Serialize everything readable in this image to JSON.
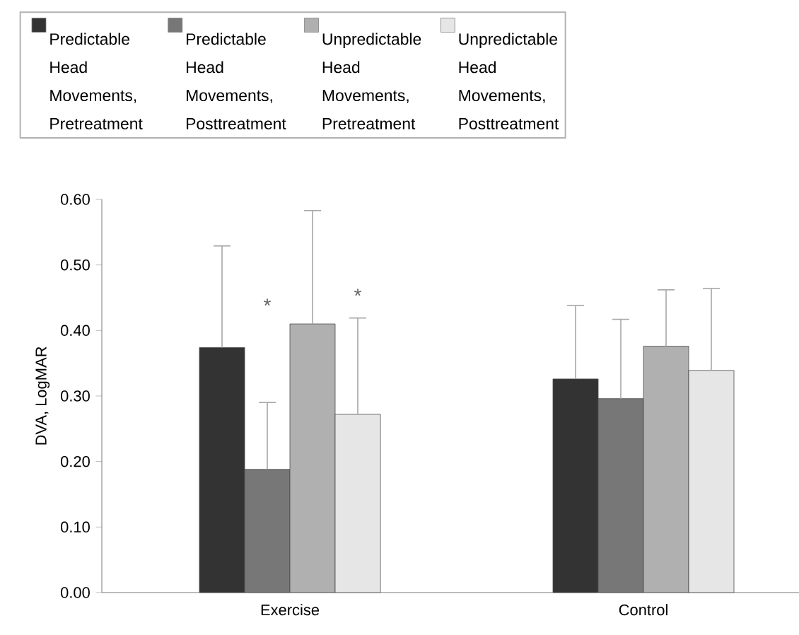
{
  "chart_data": {
    "type": "bar",
    "ylabel": "DVA, LogMAR",
    "categories": [
      "Exercise",
      "Control"
    ],
    "series": [
      {
        "name": "Predictable Head Movements, Pretreatment",
        "color": "#333333",
        "values": [
          0.374,
          0.326
        ],
        "errors": [
          [
            0.374,
            0.529
          ],
          [
            0.326,
            0.438
          ]
        ]
      },
      {
        "name": "Predictable Head Movements, Posttreatment",
        "color": "#777777",
        "values": [
          0.188,
          0.296
        ],
        "errors": [
          [
            0.188,
            0.29
          ],
          [
            0.296,
            0.417
          ]
        ]
      },
      {
        "name": "Unpredictable Head Movements, Pretreatment",
        "color": "#b0b0b0",
        "values": [
          0.41,
          0.376
        ],
        "errors": [
          [
            0.41,
            0.583
          ],
          [
            0.376,
            0.462
          ]
        ]
      },
      {
        "name": "Unpredictable Head Movements, Posttreatment",
        "color": "#e6e6e6",
        "values": [
          0.272,
          0.339
        ],
        "errors": [
          [
            0.272,
            0.419
          ],
          [
            0.339,
            0.464
          ]
        ]
      }
    ],
    "annotations": [
      "*",
      "*"
    ],
    "ylim": [
      0,
      0.6
    ],
    "yticks": [
      {
        "value": 0,
        "label": "0.00"
      },
      {
        "value": 0.1,
        "label": "0.10"
      },
      {
        "value": 0.2,
        "label": "0.20"
      },
      {
        "value": 0.3,
        "label": "0.30"
      },
      {
        "value": 0.4,
        "label": "0.40"
      },
      {
        "value": 0.5,
        "label": "0.50"
      },
      {
        "value": 0.6,
        "label": "0.60"
      }
    ],
    "grid": false,
    "legend": "top"
  }
}
